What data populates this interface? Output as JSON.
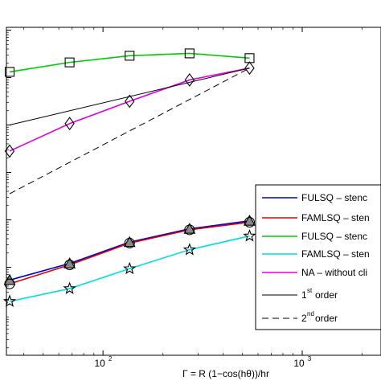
{
  "chart_data": {
    "type": "line",
    "title": "",
    "xlabel": "Γ = R (1−cos(hθ))/hr",
    "ylabel": "",
    "x_scale": "log",
    "y_scale": "log",
    "xlim": [
      34,
      1000
    ],
    "x_ticks": [
      {
        "value": 100,
        "base": "10",
        "exp": "2"
      },
      {
        "value": 1000,
        "base": "10",
        "exp": "3"
      }
    ],
    "y_tick_levels": [
      0.5,
      1.5,
      2.5,
      3.5,
      4.5,
      5.5
    ],
    "grid": false,
    "legend_position": "lower-right",
    "x": [
      34,
      68,
      136,
      272,
      544
    ],
    "series": [
      {
        "name": "FULSQ – stenc",
        "color": "#0000cc",
        "marker": "triangle-filled",
        "values": [
          0.23,
          0.58,
          1.03,
          1.31,
          1.48
        ]
      },
      {
        "name": "FAMLSQ – sten",
        "color": "#dd0000",
        "marker": "circle",
        "values": [
          0.15,
          0.55,
          1.01,
          1.29,
          1.45
        ]
      },
      {
        "name": "FULSQ – stenc",
        "color": "#00cc00",
        "marker": "square",
        "values": [
          4.62,
          4.82,
          4.96,
          5.01,
          4.91
        ]
      },
      {
        "name": "FAMLSQ – sten",
        "color": "#00dddd",
        "marker": "star",
        "values": [
          -0.22,
          0.05,
          0.47,
          0.87,
          1.16
        ]
      },
      {
        "name": "NA – without cli",
        "color": "#dd00dd",
        "marker": "diamond",
        "values": [
          2.95,
          3.53,
          4.0,
          4.45,
          4.7
        ]
      },
      {
        "name": "order",
        "label_sup": "st",
        "label_pre": "1",
        "color": "#000000",
        "dash": "solid",
        "x_range": [
          34,
          544
        ],
        "values_range": [
          3.5,
          4.7
        ]
      },
      {
        "name": "order",
        "label_sup": "nd",
        "label_pre": "2",
        "color": "#000000",
        "dash": "8,5",
        "x_range": [
          34,
          544
        ],
        "values_range": [
          2.05,
          4.7
        ]
      }
    ]
  }
}
